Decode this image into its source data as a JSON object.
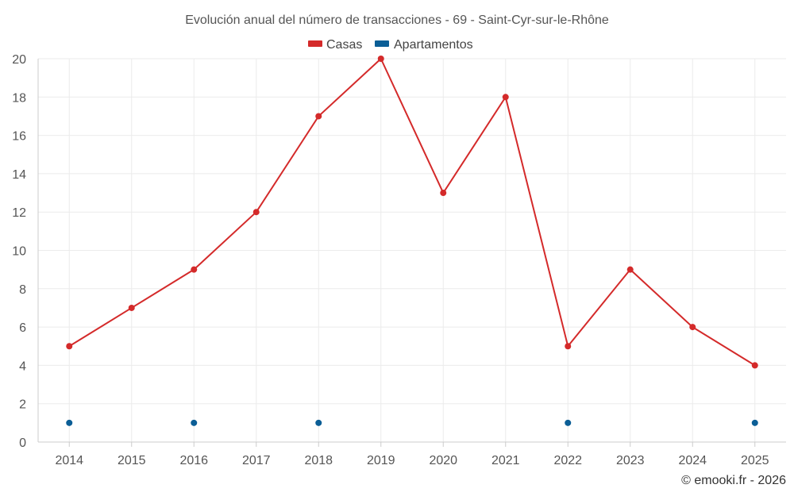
{
  "chart_data": {
    "type": "line",
    "title": "Evolución anual del número de transacciones - 69 - Saint-Cyr-sur-le-Rhône",
    "categories": [
      "2014",
      "2015",
      "2016",
      "2017",
      "2018",
      "2019",
      "2020",
      "2021",
      "2022",
      "2023",
      "2024",
      "2025"
    ],
    "ylim": [
      0,
      20
    ],
    "yticks": [
      0,
      2,
      4,
      6,
      8,
      10,
      12,
      14,
      16,
      18,
      20
    ],
    "grid": true,
    "legend_position": "top-center",
    "series": [
      {
        "name": "Casas",
        "color": "#d42a2a",
        "line": true,
        "values": [
          5,
          7,
          9,
          12,
          17,
          20,
          13,
          18,
          5,
          9,
          6,
          4
        ]
      },
      {
        "name": "Apartamentos",
        "color": "#0b5e96",
        "line": false,
        "values": [
          1,
          null,
          1,
          null,
          1,
          null,
          null,
          null,
          1,
          null,
          null,
          1
        ]
      }
    ]
  },
  "credit": "© emooki.fr - 2026"
}
